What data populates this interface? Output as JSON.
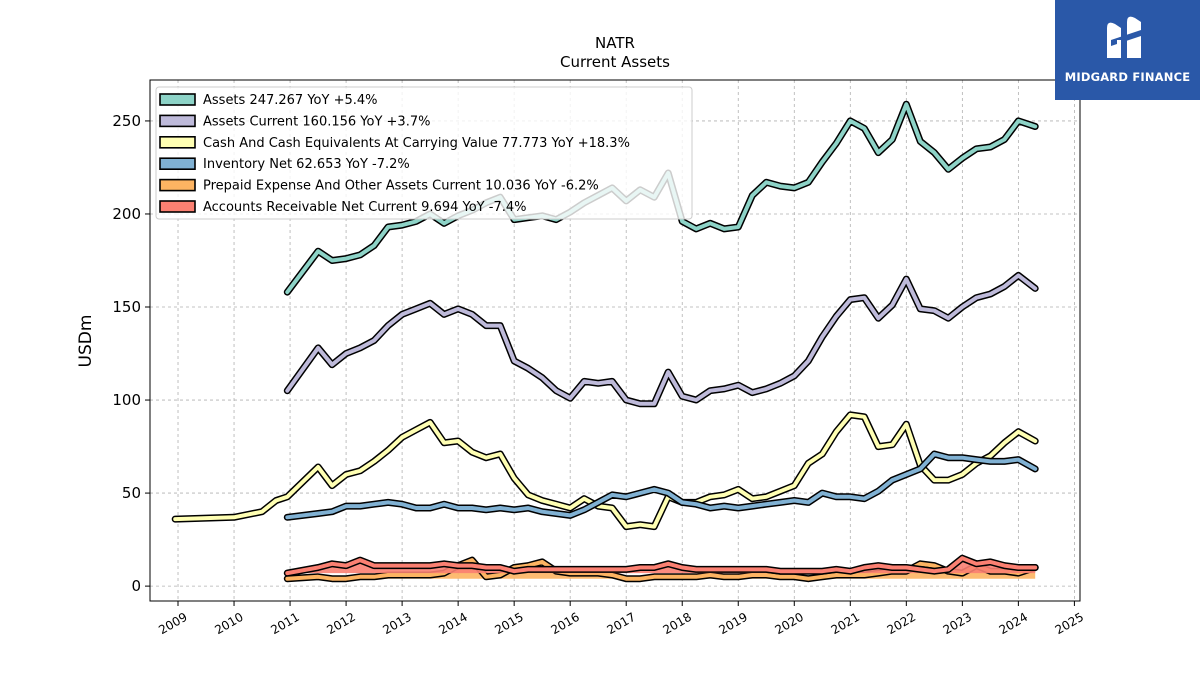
{
  "brand": {
    "name": "MIDGARD FINANCE",
    "bg_color": "#2a58a8",
    "icon": "midgard-logo-icon"
  },
  "chart_data": {
    "type": "line",
    "title": "NATR",
    "subtitle": "Current  Assets",
    "ylabel": "USDm",
    "xlabel": "",
    "xlim": [
      2008.5,
      2025.1
    ],
    "ylim": [
      -8,
      272
    ],
    "x_ticks": [
      2009,
      2010,
      2011,
      2012,
      2013,
      2014,
      2015,
      2016,
      2017,
      2018,
      2019,
      2020,
      2021,
      2022,
      2023,
      2024,
      2025
    ],
    "y_ticks": [
      0,
      50,
      100,
      150,
      200,
      250
    ],
    "grid": true,
    "legend_position": "top-left",
    "series": [
      {
        "name": "Assets  247.267 YoY +5.4%",
        "color": "#8dd3c7",
        "x": [
          2010.95,
          2011.5,
          2011.75,
          2012.0,
          2012.25,
          2012.5,
          2012.75,
          2013.0,
          2013.25,
          2013.5,
          2013.75,
          2014.0,
          2014.25,
          2014.5,
          2014.75,
          2015.0,
          2015.25,
          2015.5,
          2015.75,
          2016.0,
          2016.25,
          2016.5,
          2016.75,
          2017.0,
          2017.25,
          2017.5,
          2017.75,
          2018.0,
          2018.25,
          2018.5,
          2018.75,
          2019.0,
          2019.25,
          2019.5,
          2019.75,
          2020.0,
          2020.25,
          2020.5,
          2020.75,
          2021.0,
          2021.25,
          2021.5,
          2021.75,
          2022.0,
          2022.25,
          2022.5,
          2022.75,
          2023.0,
          2023.25,
          2023.5,
          2023.75,
          2024.0,
          2024.3
        ],
        "values": [
          158,
          180,
          175,
          176,
          178,
          183,
          193,
          194,
          196,
          200,
          195,
          199,
          202,
          206,
          209,
          197,
          198,
          199,
          197,
          201,
          206,
          210,
          214,
          207,
          213,
          209,
          222,
          196,
          192,
          195,
          192,
          193,
          210,
          217,
          215,
          214,
          217,
          228,
          238,
          250,
          246,
          233,
          240,
          259,
          239,
          233,
          224,
          230,
          235,
          236,
          240,
          250,
          247
        ]
      },
      {
        "name": "Assets Current  160.156 YoY +3.7%",
        "color": "#bebada",
        "x": [
          2010.95,
          2011.5,
          2011.75,
          2012.0,
          2012.25,
          2012.5,
          2012.75,
          2013.0,
          2013.25,
          2013.5,
          2013.75,
          2014.0,
          2014.25,
          2014.5,
          2014.75,
          2015.0,
          2015.25,
          2015.5,
          2015.75,
          2016.0,
          2016.25,
          2016.5,
          2016.75,
          2017.0,
          2017.25,
          2017.5,
          2017.75,
          2018.0,
          2018.25,
          2018.5,
          2018.75,
          2019.0,
          2019.25,
          2019.5,
          2019.75,
          2020.0,
          2020.25,
          2020.5,
          2020.75,
          2021.0,
          2021.25,
          2021.5,
          2021.75,
          2022.0,
          2022.25,
          2022.5,
          2022.75,
          2023.0,
          2023.25,
          2023.5,
          2023.75,
          2024.0,
          2024.3
        ],
        "values": [
          105,
          128,
          119,
          125,
          128,
          132,
          140,
          146,
          149,
          152,
          146,
          149,
          146,
          140,
          140,
          121,
          117,
          112,
          105,
          101,
          110,
          109,
          110,
          100,
          98,
          98,
          115,
          102,
          100,
          105,
          106,
          108,
          104,
          106,
          109,
          113,
          121,
          134,
          145,
          154,
          155,
          144,
          151,
          165,
          149,
          148,
          144,
          150,
          155,
          157,
          161,
          167,
          160
        ]
      },
      {
        "name": "Cash And Cash Equivalents At Carrying Value  77.773 YoY +18.3%",
        "color": "#ffffb3",
        "x": [
          2008.95,
          2010.0,
          2010.5,
          2010.75,
          2010.95,
          2011.5,
          2011.75,
          2012.0,
          2012.25,
          2012.5,
          2012.75,
          2013.0,
          2013.25,
          2013.5,
          2013.75,
          2014.0,
          2014.25,
          2014.5,
          2014.75,
          2015.0,
          2015.25,
          2015.5,
          2015.75,
          2016.0,
          2016.25,
          2016.5,
          2016.75,
          2017.0,
          2017.25,
          2017.5,
          2017.75,
          2018.0,
          2018.25,
          2018.5,
          2018.75,
          2019.0,
          2019.25,
          2019.5,
          2019.75,
          2020.0,
          2020.25,
          2020.5,
          2020.75,
          2021.0,
          2021.25,
          2021.5,
          2021.75,
          2022.0,
          2022.25,
          2022.5,
          2022.75,
          2023.0,
          2023.25,
          2023.5,
          2023.75,
          2024.0,
          2024.3
        ],
        "values": [
          36,
          37,
          40,
          46,
          48,
          64,
          54,
          60,
          62,
          67,
          73,
          80,
          84,
          88,
          77,
          78,
          72,
          69,
          71,
          58,
          49,
          46,
          44,
          42,
          47,
          43,
          42,
          32,
          33,
          32,
          48,
          45,
          45,
          48,
          49,
          52,
          47,
          48,
          51,
          54,
          66,
          71,
          83,
          92,
          91,
          75,
          76,
          87,
          65,
          57,
          57,
          60,
          66,
          70,
          77,
          83,
          78
        ]
      },
      {
        "name": "Inventory Net  62.653 YoY -7.2%",
        "color": "#80b1d3",
        "x": [
          2010.95,
          2011.5,
          2011.75,
          2012.0,
          2012.25,
          2012.5,
          2012.75,
          2013.0,
          2013.25,
          2013.5,
          2013.75,
          2014.0,
          2014.25,
          2014.5,
          2014.75,
          2015.0,
          2015.25,
          2015.5,
          2015.75,
          2016.0,
          2016.25,
          2016.5,
          2016.75,
          2017.0,
          2017.25,
          2017.5,
          2017.75,
          2018.0,
          2018.25,
          2018.5,
          2018.75,
          2019.0,
          2019.25,
          2019.5,
          2019.75,
          2020.0,
          2020.25,
          2020.5,
          2020.75,
          2021.0,
          2021.25,
          2021.5,
          2021.75,
          2022.0,
          2022.25,
          2022.5,
          2022.75,
          2023.0,
          2023.25,
          2023.5,
          2023.75,
          2024.0,
          2024.3
        ],
        "values": [
          37,
          39,
          40,
          43,
          43,
          44,
          45,
          44,
          42,
          42,
          44,
          42,
          42,
          41,
          42,
          41,
          42,
          40,
          39,
          38,
          41,
          45,
          49,
          48,
          50,
          52,
          50,
          45,
          44,
          42,
          43,
          42,
          43,
          44,
          45,
          46,
          45,
          50,
          48,
          48,
          47,
          51,
          57,
          60,
          63,
          71,
          69,
          69,
          68,
          67,
          67,
          68,
          63
        ]
      },
      {
        "name": "Prepaid Expense And Other Assets Current  10.036 YoY -6.2%",
        "color": "#fdb462",
        "x": [
          2010.95,
          2011.5,
          2011.75,
          2012.0,
          2012.25,
          2012.5,
          2012.75,
          2013.0,
          2013.25,
          2013.5,
          2013.75,
          2014.0,
          2014.25,
          2014.5,
          2014.75,
          2015.0,
          2015.25,
          2015.5,
          2015.75,
          2016.0,
          2016.25,
          2016.5,
          2016.75,
          2017.0,
          2017.25,
          2017.5,
          2017.75,
          2018.0,
          2018.25,
          2018.5,
          2018.75,
          2019.0,
          2019.25,
          2019.5,
          2019.75,
          2020.0,
          2020.25,
          2020.5,
          2020.75,
          2021.0,
          2021.25,
          2021.5,
          2021.75,
          2022.0,
          2022.25,
          2022.5,
          2022.75,
          2023.0,
          2023.25,
          2023.5,
          2023.75,
          2024.0,
          2024.3
        ],
        "values": [
          4,
          5,
          4,
          4,
          5,
          5,
          6,
          6,
          6,
          6,
          7,
          11,
          14,
          5,
          6,
          10,
          11,
          13,
          8,
          7,
          7,
          7,
          6,
          4,
          4,
          5,
          5,
          5,
          5,
          6,
          5,
          5,
          6,
          6,
          5,
          5,
          4,
          5,
          6,
          6,
          6,
          7,
          8,
          8,
          12,
          11,
          8,
          7,
          11,
          8,
          8,
          7,
          10
        ]
      },
      {
        "name": "Accounts Receivable Net Current  9.694 YoY -7.4%",
        "color": "#fb8072",
        "x": [
          2010.95,
          2011.5,
          2011.75,
          2012.0,
          2012.25,
          2012.5,
          2012.75,
          2013.0,
          2013.25,
          2013.5,
          2013.75,
          2014.0,
          2014.25,
          2014.5,
          2014.75,
          2015.0,
          2015.25,
          2015.5,
          2015.75,
          2016.0,
          2016.25,
          2016.5,
          2016.75,
          2017.0,
          2017.25,
          2017.5,
          2017.75,
          2018.0,
          2018.25,
          2018.5,
          2018.75,
          2019.0,
          2019.25,
          2019.5,
          2019.75,
          2020.0,
          2020.25,
          2020.5,
          2020.75,
          2021.0,
          2021.25,
          2021.5,
          2021.75,
          2022.0,
          2022.25,
          2022.5,
          2022.75,
          2023.0,
          2023.25,
          2023.5,
          2023.75,
          2024.0,
          2024.3
        ],
        "values": [
          7,
          10,
          12,
          11,
          14,
          11,
          11,
          11,
          11,
          11,
          12,
          11,
          11,
          10,
          10,
          8,
          9,
          9,
          9,
          9,
          9,
          9,
          9,
          9,
          10,
          10,
          12,
          10,
          9,
          9,
          9,
          9,
          9,
          9,
          8,
          8,
          8,
          8,
          9,
          8,
          10,
          11,
          10,
          10,
          9,
          8,
          9,
          15,
          12,
          13,
          11,
          10,
          10
        ]
      }
    ]
  }
}
